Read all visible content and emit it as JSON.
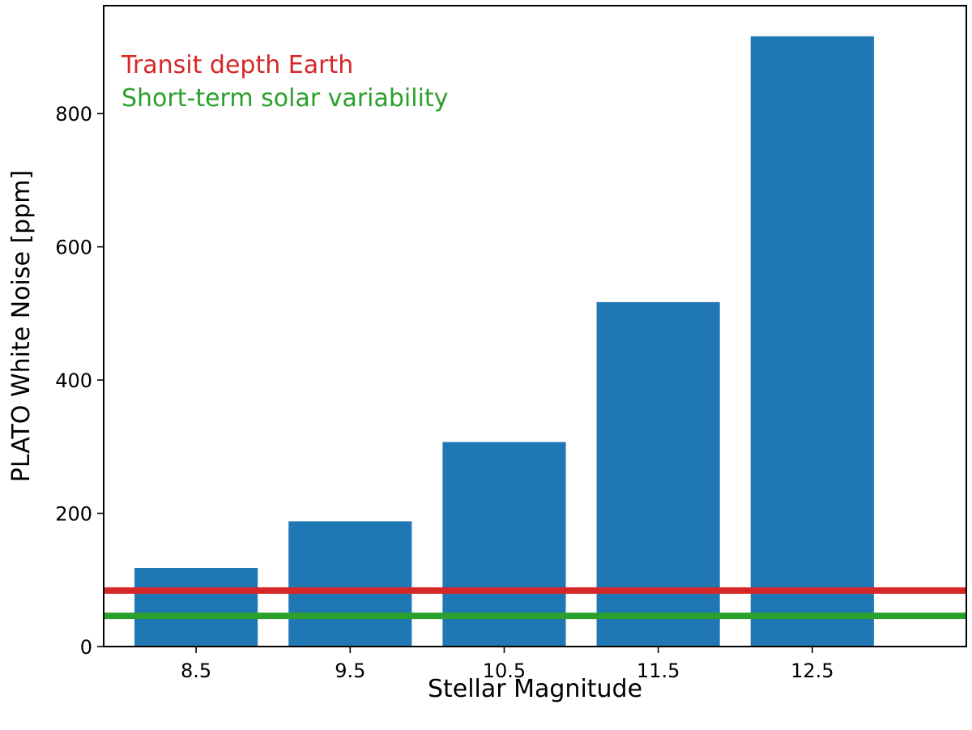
{
  "chart_data": {
    "type": "bar",
    "categories": [
      "8.5",
      "9.5",
      "10.5",
      "11.5",
      "12.5"
    ],
    "x": [
      8.5,
      9.5,
      10.5,
      11.5,
      12.5
    ],
    "values": [
      118,
      188,
      307,
      517,
      916
    ],
    "bar_color": "#1f77b4",
    "xlabel": "Stellar Magnitude",
    "ylabel": "PLATO White Noise [ppm]",
    "xlim": [
      7.9,
      13.5
    ],
    "ylim": [
      0,
      962
    ],
    "yticks": [
      0,
      200,
      400,
      600,
      800
    ],
    "grid": false,
    "reference_lines": [
      {
        "label": "Transit depth Earth",
        "y": 84,
        "color": "#d62728"
      },
      {
        "label": "Short-term solar variability",
        "y": 46,
        "color": "#2ca02c"
      }
    ],
    "legend_placement": "top-left"
  }
}
